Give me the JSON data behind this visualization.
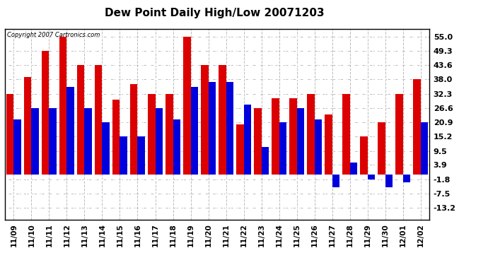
{
  "title": "Dew Point Daily High/Low 20071203",
  "copyright": "Copyright 2007 Cartronics.com",
  "dates": [
    "11/09",
    "11/10",
    "11/11",
    "11/12",
    "11/13",
    "11/14",
    "11/15",
    "11/16",
    "11/17",
    "11/18",
    "11/19",
    "11/20",
    "11/21",
    "11/22",
    "11/23",
    "11/24",
    "11/25",
    "11/26",
    "11/27",
    "11/28",
    "11/29",
    "11/30",
    "12/01",
    "12/02"
  ],
  "high": [
    32.3,
    39.0,
    49.3,
    55.0,
    43.6,
    43.6,
    30.0,
    36.0,
    32.3,
    32.3,
    55.0,
    43.6,
    43.6,
    20.0,
    26.6,
    30.5,
    30.5,
    32.3,
    24.0,
    32.3,
    15.2,
    20.9,
    32.3,
    38.0
  ],
  "low": [
    22.0,
    26.6,
    26.6,
    35.0,
    26.6,
    20.9,
    15.2,
    15.2,
    26.6,
    22.0,
    35.0,
    37.0,
    37.0,
    28.0,
    11.0,
    20.9,
    26.6,
    22.0,
    -5.0,
    5.0,
    -1.8,
    -5.0,
    -3.0,
    20.9
  ],
  "high_color": "#dd0000",
  "low_color": "#0000dd",
  "bg_color": "#ffffff",
  "plot_bg_color": "#ffffff",
  "grid_color": "#bbbbbb",
  "yticks": [
    -13.2,
    -7.5,
    -1.8,
    3.9,
    9.5,
    15.2,
    20.9,
    26.6,
    32.3,
    38.0,
    43.6,
    49.3,
    55.0
  ],
  "ylim": [
    -18.0,
    58.0
  ],
  "bar_width": 0.42,
  "figwidth": 6.9,
  "figheight": 3.75,
  "dpi": 100
}
